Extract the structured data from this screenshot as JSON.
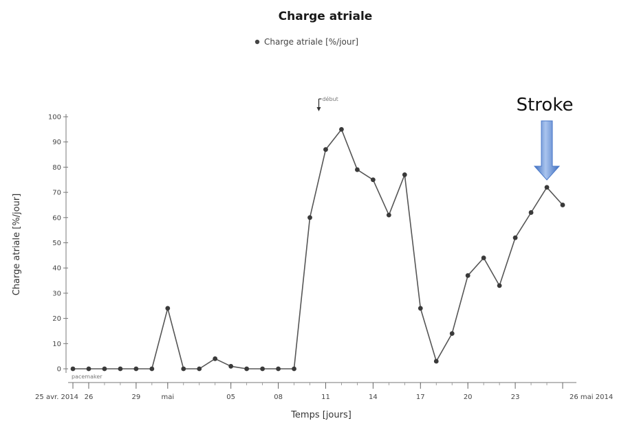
{
  "chart_data": {
    "type": "line",
    "title": "Charge atriale",
    "legend": {
      "label": "Charge atriale [%/jour]",
      "placement": "top-center"
    },
    "xlabel": "Temps [jours]",
    "ylabel": "Charge atriale [%/jour]",
    "ylim": [
      0,
      100
    ],
    "yticks": [
      0,
      10,
      20,
      30,
      40,
      50,
      60,
      70,
      80,
      90,
      100
    ],
    "x_range": [
      "2014-04-25",
      "2014-05-26"
    ],
    "xticks": [
      {
        "date": "2014-04-25",
        "label": "25 avr. 2014"
      },
      {
        "date": "2014-04-26",
        "label": "26"
      },
      {
        "date": "2014-04-29",
        "label": "29"
      },
      {
        "date": "2014-05-01",
        "label": "mai"
      },
      {
        "date": "2014-05-05",
        "label": "05"
      },
      {
        "date": "2014-05-08",
        "label": "08"
      },
      {
        "date": "2014-05-11",
        "label": "11"
      },
      {
        "date": "2014-05-14",
        "label": "14"
      },
      {
        "date": "2014-05-17",
        "label": "17"
      },
      {
        "date": "2014-05-20",
        "label": "20"
      },
      {
        "date": "2014-05-23",
        "label": "23"
      },
      {
        "date": "2014-05-26",
        "label": "26 mai 2014"
      }
    ],
    "series": [
      {
        "name": "Charge atriale [%/jour]",
        "color": "#555555",
        "points": [
          {
            "x": "2014-04-25",
            "y": 0
          },
          {
            "x": "2014-04-26",
            "y": 0
          },
          {
            "x": "2014-04-27",
            "y": 0
          },
          {
            "x": "2014-04-28",
            "y": 0
          },
          {
            "x": "2014-04-29",
            "y": 0
          },
          {
            "x": "2014-04-30",
            "y": 0
          },
          {
            "x": "2014-05-01",
            "y": 24
          },
          {
            "x": "2014-05-02",
            "y": 0
          },
          {
            "x": "2014-05-03",
            "y": 0
          },
          {
            "x": "2014-05-04",
            "y": 4
          },
          {
            "x": "2014-05-05",
            "y": 1
          },
          {
            "x": "2014-05-06",
            "y": 0
          },
          {
            "x": "2014-05-07",
            "y": 0
          },
          {
            "x": "2014-05-08",
            "y": 0
          },
          {
            "x": "2014-05-09",
            "y": 0
          },
          {
            "x": "2014-05-10",
            "y": 60
          },
          {
            "x": "2014-05-11",
            "y": 87
          },
          {
            "x": "2014-05-12",
            "y": 95
          },
          {
            "x": "2014-05-13",
            "y": 79
          },
          {
            "x": "2014-05-14",
            "y": 75
          },
          {
            "x": "2014-05-15",
            "y": 61
          },
          {
            "x": "2014-05-16",
            "y": 77
          },
          {
            "x": "2014-05-17",
            "y": 24
          },
          {
            "x": "2014-05-18",
            "y": 3
          },
          {
            "x": "2014-05-19",
            "y": 14
          },
          {
            "x": "2014-05-20",
            "y": 37
          },
          {
            "x": "2014-05-21",
            "y": 44
          },
          {
            "x": "2014-05-22",
            "y": 33
          },
          {
            "x": "2014-05-23",
            "y": 52
          },
          {
            "x": "2014-05-24",
            "y": 62
          },
          {
            "x": "2014-05-25",
            "y": 72
          },
          {
            "x": "2014-05-26",
            "y": 65
          }
        ]
      }
    ],
    "annotations": [
      {
        "text": "Stroke",
        "x": "2014-05-25",
        "arrow_color": "#4a78c8"
      },
      {
        "text": "début",
        "x": "2014-05-11"
      },
      {
        "text": "pacemaker",
        "x": "2014-04-25"
      }
    ],
    "grid": false
  }
}
